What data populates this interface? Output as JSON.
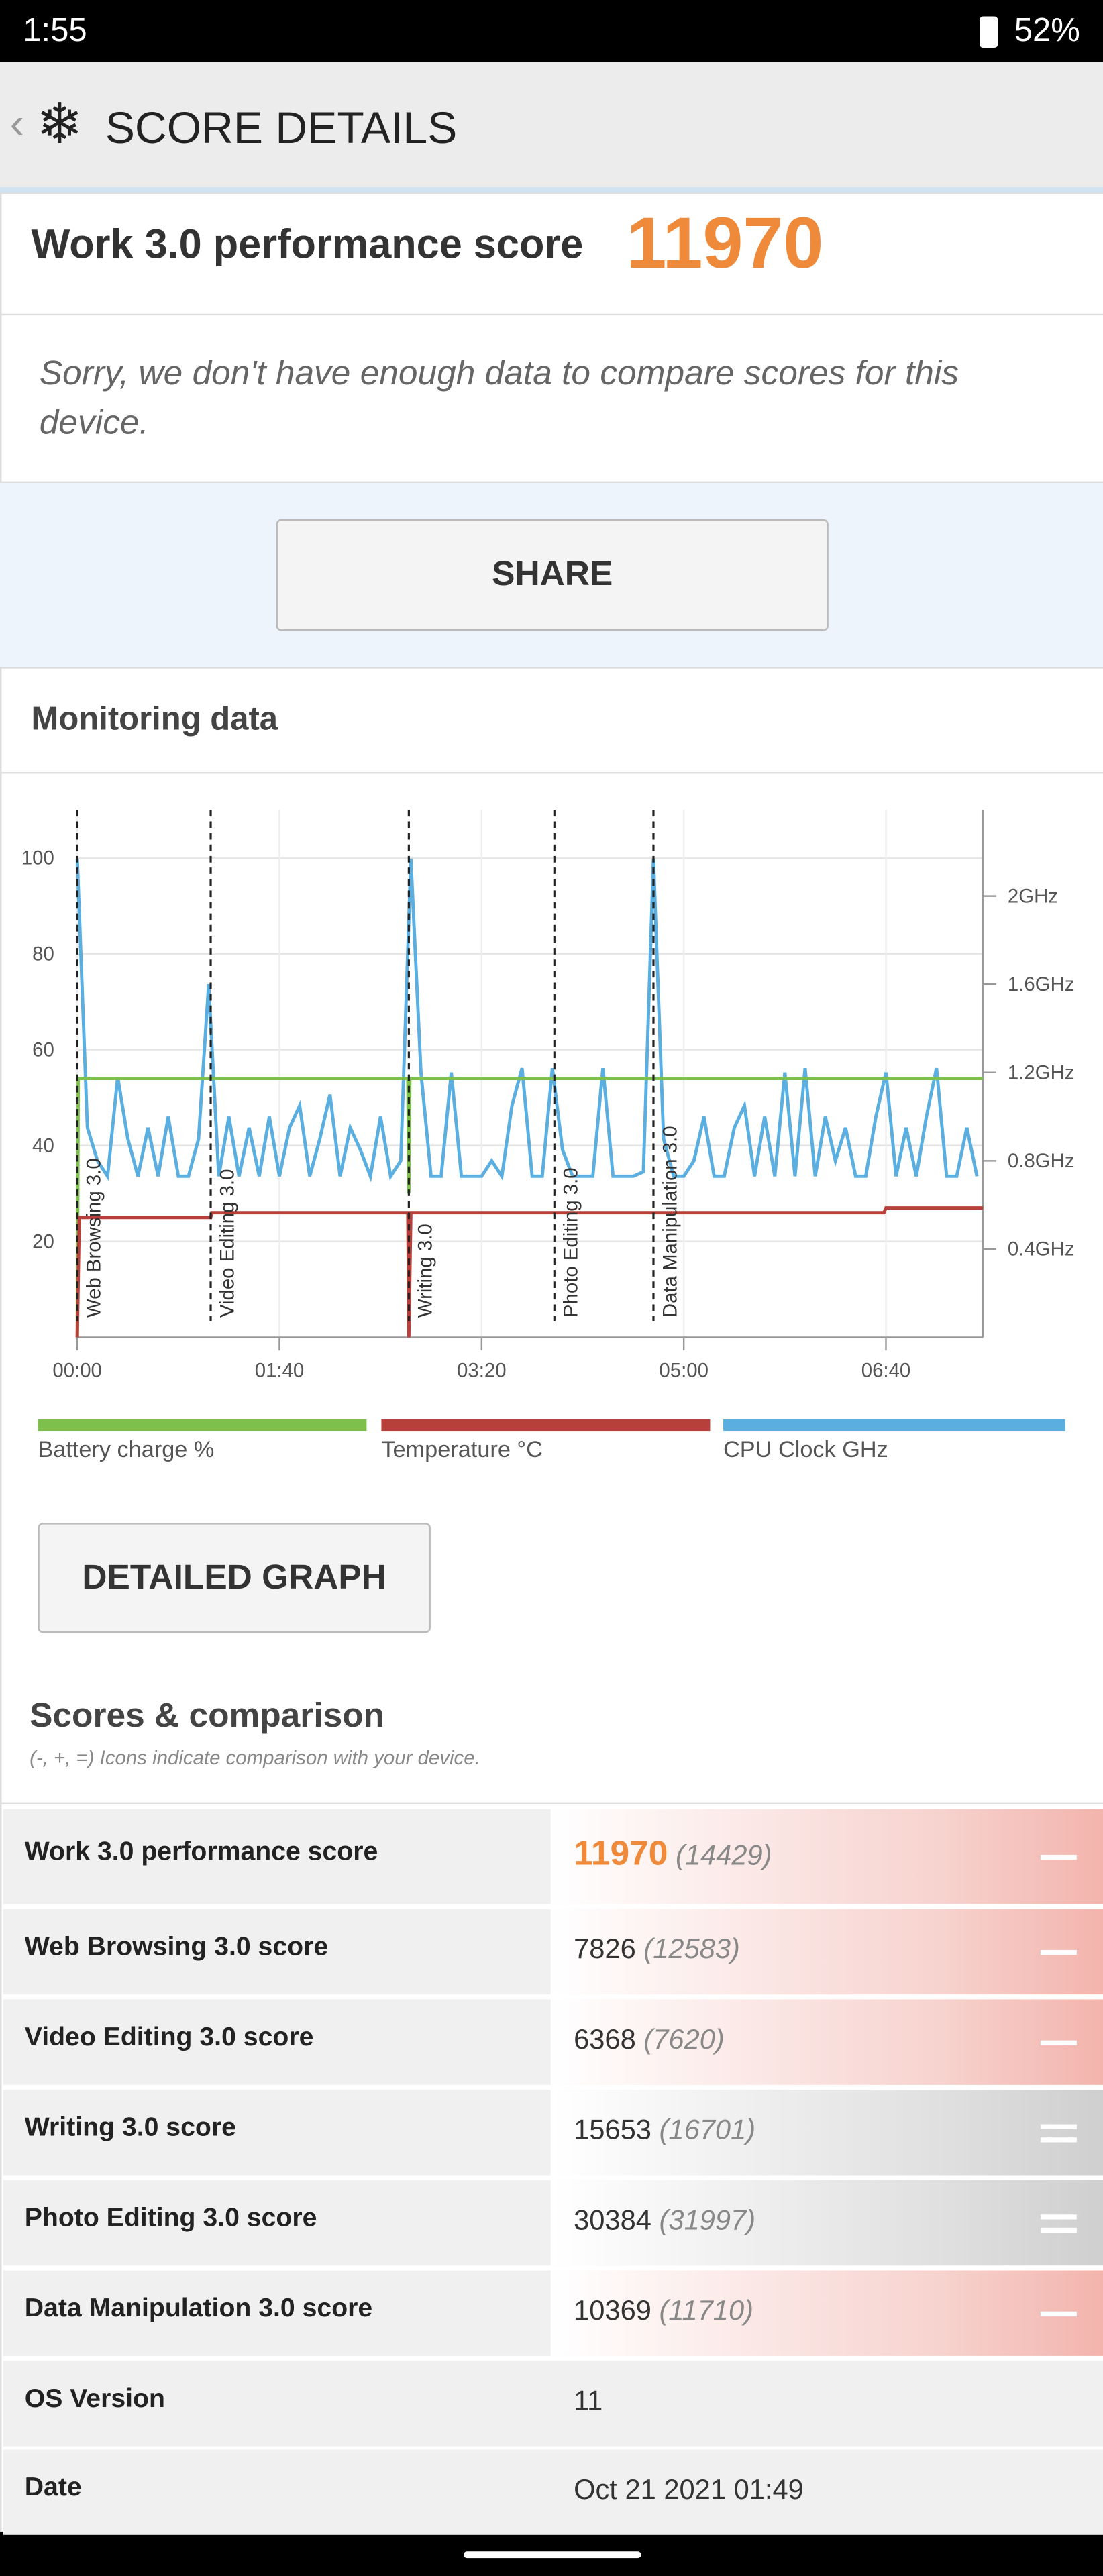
{
  "status_bar": {
    "time": "1:55",
    "battery": "52%"
  },
  "header": {
    "title": "SCORE DETAILS"
  },
  "score_card": {
    "label": "Work 3.0 performance score",
    "score": 11970,
    "message": "Sorry, we don't have enough data to compare scores for this device."
  },
  "share_button": "SHARE",
  "monitoring": {
    "title": "Monitoring data",
    "detailed_button": "DETAILED GRAPH"
  },
  "chart_data": {
    "type": "line",
    "xlim": [
      0,
      448
    ],
    "xticks": [
      {
        "value": 0,
        "label": "00:00"
      },
      {
        "value": 100,
        "label": "01:40"
      },
      {
        "value": 200,
        "label": "03:20"
      },
      {
        "value": 300,
        "label": "05:00"
      },
      {
        "value": 400,
        "label": "06:40"
      }
    ],
    "ylim": [
      0,
      110
    ],
    "yticks": [
      20,
      40,
      60,
      80,
      100
    ],
    "y2lim": [
      0,
      2.39
    ],
    "y2ticks": [
      {
        "value": 0.4,
        "label": "0.4GHz"
      },
      {
        "value": 0.8,
        "label": "0.8GHz"
      },
      {
        "value": 1.2,
        "label": "1.2GHz"
      },
      {
        "value": 1.6,
        "label": "1.6GHz"
      },
      {
        "value": 2,
        "label": "2GHz"
      }
    ],
    "grid": true,
    "markers": [
      {
        "x": 0,
        "label": "Web Browsing 3.0"
      },
      {
        "x": 66,
        "label": "Video Editing 3.0"
      },
      {
        "x": 164,
        "label": "Writing 3.0"
      },
      {
        "x": 236,
        "label": "Photo Editing 3.0"
      },
      {
        "x": 285,
        "label": "Data Manipulation 3.0"
      }
    ],
    "series": [
      {
        "name": "Battery charge %",
        "color": "#7dc04b",
        "x": [
          0,
          0.5,
          163.5,
          164,
          164.5,
          448
        ],
        "values": [
          0,
          54,
          54,
          30,
          54,
          54
        ]
      },
      {
        "name": "Temperature °C",
        "color": "#b8403a",
        "x": [
          0,
          1,
          66,
          66.5,
          163.5,
          164,
          165,
          399,
          400,
          448
        ],
        "values": [
          0,
          25,
          25,
          26,
          26,
          0,
          26,
          26,
          27,
          27
        ]
      },
      {
        "name": "CPU Clock GHz",
        "color": "#5aaee0",
        "axis": "y2",
        "x": [
          0,
          5,
          10,
          15,
          20,
          25,
          30,
          35,
          40,
          45,
          50,
          55,
          60,
          65,
          70,
          75,
          80,
          85,
          90,
          95,
          100,
          105,
          110,
          115,
          120,
          125,
          130,
          135,
          140,
          145,
          150,
          155,
          160,
          165,
          170,
          175,
          180,
          185,
          190,
          195,
          200,
          205,
          210,
          215,
          220,
          225,
          230,
          235,
          240,
          245,
          250,
          255,
          260,
          265,
          270,
          275,
          280,
          285,
          290,
          295,
          300,
          305,
          310,
          315,
          320,
          325,
          330,
          335,
          340,
          345,
          350,
          355,
          360,
          365,
          370,
          375,
          380,
          385,
          390,
          395,
          400,
          405,
          410,
          415,
          420,
          425,
          430,
          435,
          440,
          445
        ],
        "values": [
          2.17,
          0.95,
          0.8,
          0.73,
          1.18,
          0.9,
          0.73,
          0.95,
          0.73,
          1.0,
          0.73,
          0.73,
          0.9,
          1.6,
          0.73,
          1.0,
          0.73,
          0.95,
          0.73,
          1.0,
          0.73,
          0.95,
          1.05,
          0.73,
          0.9,
          1.1,
          0.73,
          0.95,
          0.85,
          0.73,
          1.0,
          0.73,
          0.8,
          2.17,
          1.2,
          0.73,
          0.73,
          1.2,
          0.73,
          0.73,
          0.73,
          0.8,
          0.73,
          1.05,
          1.22,
          0.73,
          0.73,
          1.22,
          0.85,
          0.73,
          0.73,
          0.73,
          1.22,
          0.73,
          0.73,
          0.73,
          0.75,
          2.17,
          0.9,
          0.73,
          0.73,
          0.8,
          1.0,
          0.73,
          0.73,
          0.95,
          1.05,
          0.73,
          1.0,
          0.73,
          1.2,
          0.73,
          1.22,
          0.73,
          1.0,
          0.8,
          0.95,
          0.73,
          0.73,
          1.0,
          1.2,
          0.73,
          0.95,
          0.73,
          1.0,
          1.22,
          0.73,
          0.73,
          0.95,
          0.73
        ]
      }
    ]
  },
  "scores": {
    "title": "Scores & comparison",
    "note": "(-, +, =) Icons indicate comparison with your device.",
    "rows": [
      {
        "name": "Work 3.0 performance score",
        "score": 11970,
        "comparison": "(14429)"
      },
      {
        "name": "Web Browsing 3.0 score",
        "score": 7826,
        "comparison": "(12583)"
      },
      {
        "name": "Video Editing 3.0 score",
        "score": 6368,
        "comparison": "(7620)"
      },
      {
        "name": "Writing 3.0 score",
        "score": 15653,
        "comparison": "(16701)"
      },
      {
        "name": "Photo Editing 3.0 score",
        "score": 30384,
        "comparison": "(31997)"
      },
      {
        "name": "Data Manipulation 3.0 score",
        "score": 10369,
        "comparison": "(11710)"
      }
    ],
    "info": [
      {
        "name": "OS Version",
        "value": "11"
      },
      {
        "name": "Date",
        "value": "Oct 21 2021 01:49"
      }
    ]
  }
}
